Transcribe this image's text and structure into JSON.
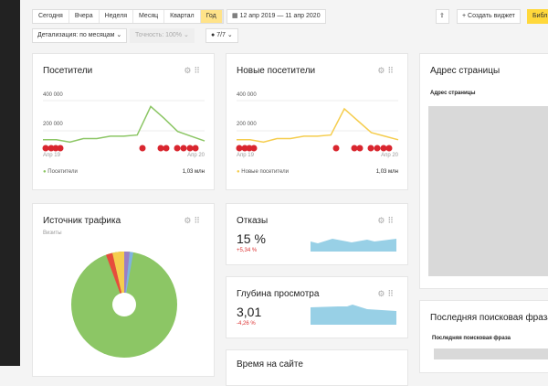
{
  "toolbar": {
    "periods": [
      "Сегодня",
      "Вчера",
      "Неделя",
      "Месяц",
      "Квартал",
      "Год"
    ],
    "active_period": "Год",
    "date_range": "12 апр 2019 — 11 апр 2020",
    "create_widget": "+ Создать виджет",
    "library": "Библ",
    "detail": "Детализация: по месяцам ⌄",
    "accuracy": "Точность: 100% ⌄",
    "segments": "7/7 ⌄"
  },
  "visitors": {
    "title": "Посетители",
    "y_ticks": [
      "400 000",
      "200 000"
    ],
    "x_start": "Апр 19",
    "x_end": "Апр 20",
    "legend": "Посетители",
    "total": "1,03 млн",
    "color": "#8cc665",
    "series": [
      40000,
      40000,
      20000,
      50000,
      50000,
      70000,
      70000,
      80000,
      320000,
      220000,
      110000,
      70000,
      30000
    ]
  },
  "new_visitors": {
    "title": "Новые посетители",
    "y_ticks": [
      "400 000",
      "200 000"
    ],
    "x_start": "Апр 19",
    "x_end": "Апр 20",
    "legend": "Новые посетители",
    "total": "1,03 млн",
    "color": "#f5cd4e",
    "series": [
      40000,
      40000,
      20000,
      50000,
      50000,
      70000,
      70000,
      80000,
      300000,
      200000,
      100000,
      70000,
      40000
    ]
  },
  "address": {
    "title": "Адрес страницы",
    "subtitle": "Адрес страницы"
  },
  "traffic": {
    "title": "Источник трафика",
    "subtitle": "Визиты"
  },
  "bounce": {
    "title": "Отказы",
    "value": "15 %",
    "delta": "+5,34 %"
  },
  "depth": {
    "title": "Глубина просмотра",
    "value": "3,01",
    "delta": "-4,26 %"
  },
  "time": {
    "title": "Время на сайте"
  },
  "search": {
    "title": "Последняя поисковая фраза",
    "subtitle": "Последняя поисковая фраза"
  }
}
